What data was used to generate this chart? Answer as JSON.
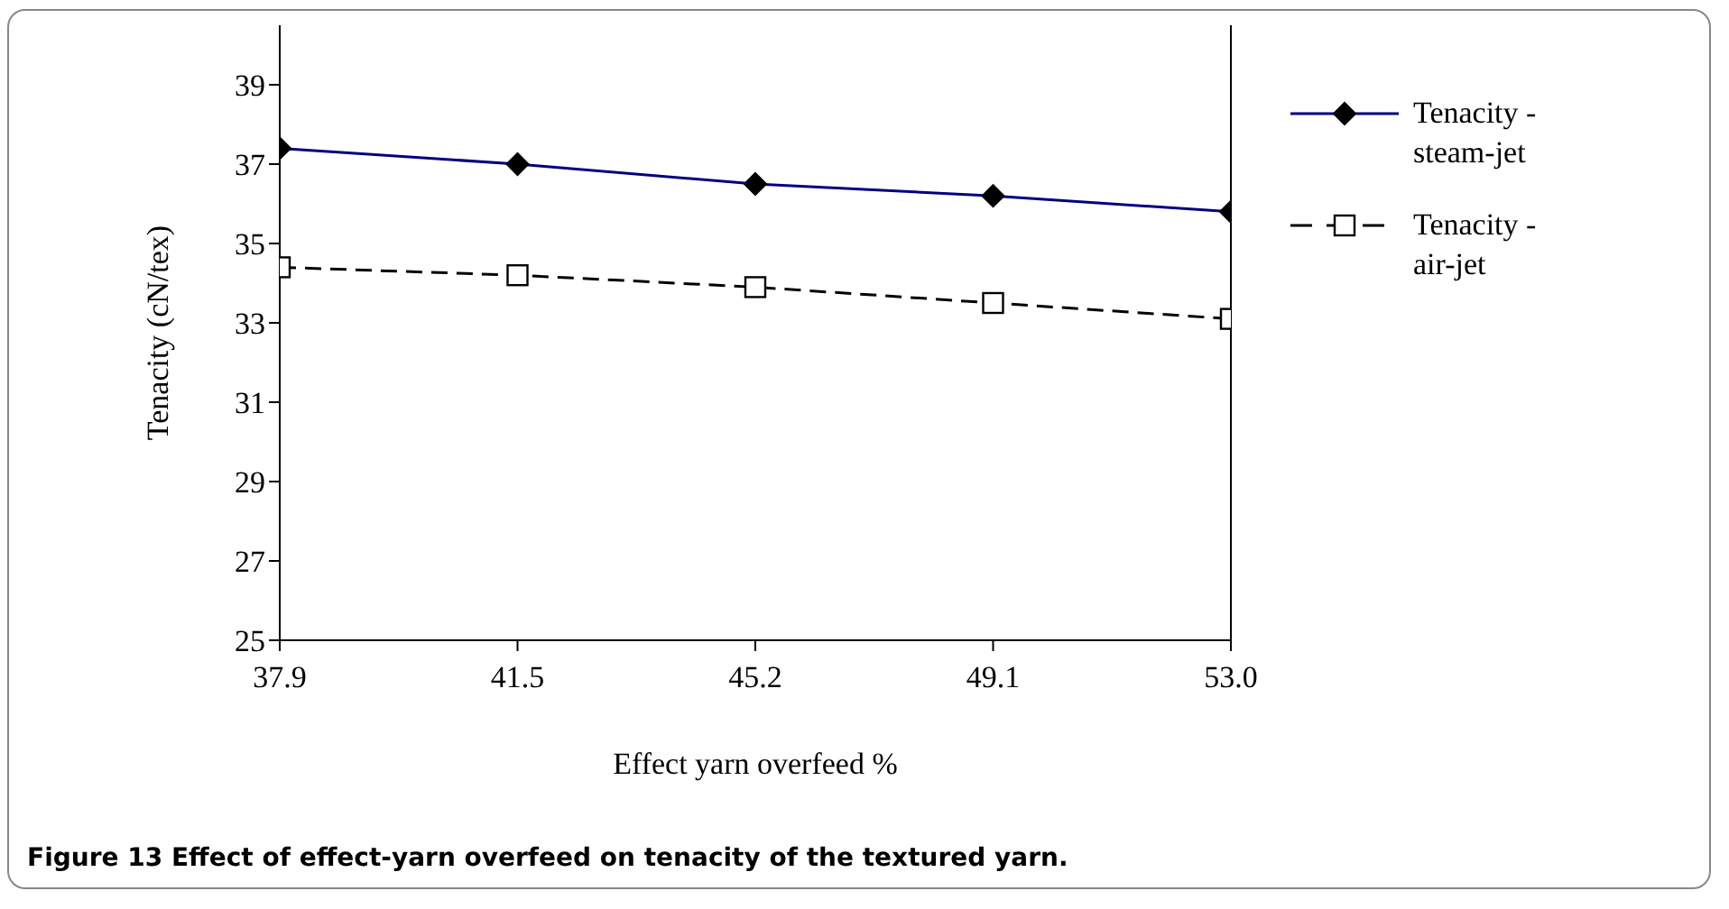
{
  "chart_data": {
    "type": "line",
    "xlabel": "Effect yarn overfeed %",
    "ylabel": "Tenacity (cN/tex)",
    "categories": [
      "37.9",
      "41.5",
      "45.2",
      "49.1",
      "53.0"
    ],
    "series": [
      {
        "name": "Tenacity  - steam-jet",
        "color": "#000080",
        "marker": "diamond",
        "line_style": "solid",
        "values": [
          37.4,
          37.0,
          36.5,
          36.2,
          35.8
        ]
      },
      {
        "name": "Tenacity  - air-jet",
        "color": "#000000",
        "marker": "square",
        "line_style": "dashed",
        "values": [
          34.4,
          34.2,
          33.9,
          33.5,
          33.1
        ]
      }
    ],
    "ylim": [
      25,
      40.5
    ],
    "yticks": [
      25,
      27,
      29,
      31,
      33,
      35,
      37,
      39
    ],
    "grid": false,
    "legend": "right",
    "annotations": [
      "Figure 13 Effect of effect-yarn overfeed on tenacity of the textured yarn."
    ]
  }
}
